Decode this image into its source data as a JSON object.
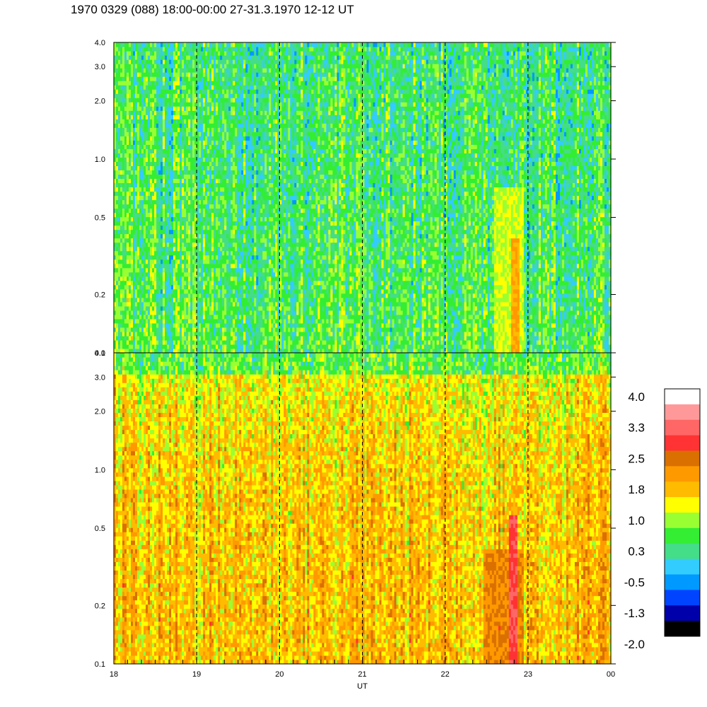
{
  "title": "1970 0329 (088) 18:00-00:00 27-31.3.1970  12-12 UT",
  "chart_data": {
    "type": "heatmap",
    "xlabel": "UT",
    "x_ticks": [
      "18",
      "19",
      "20",
      "21",
      "22",
      "23",
      "00"
    ],
    "x_range": [
      18,
      24
    ],
    "y_scale": "log",
    "y_range": [
      0.1,
      4.0
    ],
    "y_ticks": [
      "0.1",
      "0.2",
      "0.5",
      "1.0",
      "2.0",
      "3.0",
      "4.0"
    ],
    "y_tick_values": [
      0.1,
      0.2,
      0.5,
      1.0,
      2.0,
      3.0,
      4.0
    ],
    "dashed_vertical_lines_at": [
      19,
      20,
      21,
      22,
      23
    ],
    "panels": [
      {
        "name": "upper",
        "base_level": 0.3,
        "features": [
          {
            "x_start": 22.8,
            "x_end": 22.9,
            "y_max": 0.4,
            "level": 1.8
          },
          {
            "x_start": 22.6,
            "x_end": 22.95,
            "y_max": 0.7,
            "level": 1.0
          }
        ]
      },
      {
        "name": "lower",
        "base_level": 1.4,
        "features": [
          {
            "x_start": 22.78,
            "x_end": 22.88,
            "y_max": 0.6,
            "level": 2.8
          },
          {
            "x_start": 22.45,
            "x_end": 22.95,
            "y_max": 0.4,
            "level": 2.1
          }
        ]
      }
    ],
    "colorbar": {
      "labels": [
        "4.0",
        "3.3",
        "2.5",
        "1.8",
        "1.0",
        "0.3",
        "-0.5",
        "-1.3",
        "-2.0"
      ],
      "colors": [
        "#ffffff",
        "#ff9999",
        "#ff6666",
        "#ff3333",
        "#d97000",
        "#ff9900",
        "#ffbb00",
        "#ffff00",
        "#99ff33",
        "#33ee33",
        "#44dd88",
        "#33ccff",
        "#0099ff",
        "#0044ff",
        "#0000aa",
        "#000000"
      ]
    }
  }
}
